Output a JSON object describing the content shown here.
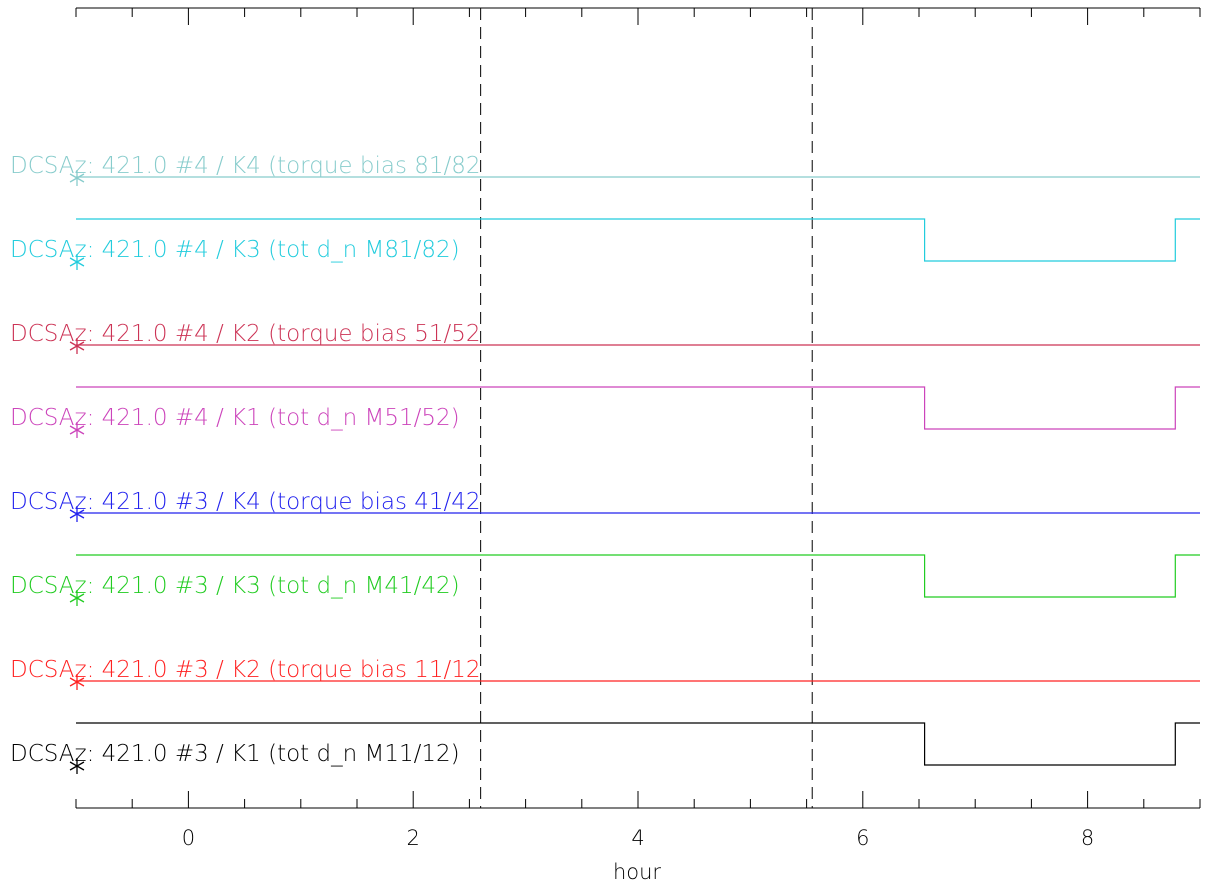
{
  "chart_data": {
    "type": "line",
    "xlabel": "hour",
    "ylabel": "",
    "xlim": [
      -1.0,
      9.0
    ],
    "x_ticks": [
      0,
      2,
      4,
      6,
      8
    ],
    "x_tick_labels": [
      "0",
      "2",
      "4",
      "6",
      "8"
    ],
    "grid": false,
    "vertical_markers": [
      2.6,
      5.55
    ],
    "series": [
      {
        "name": "DCSAz: 421.0 #3 / K1 (tot d_n M11/12)",
        "color": "#000000",
        "kind": "step",
        "x": [
          -1.0,
          6.55,
          6.55,
          8.78,
          8.78,
          9.0
        ],
        "y": [
          1,
          1,
          0,
          0,
          1,
          1
        ]
      },
      {
        "name": "DCSAz: 421.0 #3 / K2 (torque bias 11/12",
        "color": "#ff2222",
        "kind": "flat",
        "x": [
          -1.0,
          9.0
        ],
        "y": [
          0,
          0
        ]
      },
      {
        "name": "DCSAz: 421.0 #3 / K3 (tot d_n M41/42)",
        "color": "#22cc22",
        "kind": "step",
        "x": [
          -1.0,
          6.55,
          6.55,
          8.78,
          8.78,
          9.0
        ],
        "y": [
          1,
          1,
          0,
          0,
          1,
          1
        ]
      },
      {
        "name": "DCSAz: 421.0 #3 / K4 (torque bias 41/42",
        "color": "#2222ee",
        "kind": "flat",
        "x": [
          -1.0,
          9.0
        ],
        "y": [
          0,
          0
        ]
      },
      {
        "name": "DCSAz: 421.0 #4 / K1 (tot d_n M51/52)",
        "color": "#cc44bb",
        "kind": "step",
        "x": [
          -1.0,
          6.55,
          6.55,
          8.78,
          8.78,
          9.0
        ],
        "y": [
          1,
          1,
          0,
          0,
          1,
          1
        ]
      },
      {
        "name": "DCSAz: 421.0 #4 / K2 (torque bias 51/52",
        "color": "#cc3355",
        "kind": "flat",
        "x": [
          -1.0,
          9.0
        ],
        "y": [
          0,
          0
        ]
      },
      {
        "name": "DCSAz: 421.0 #4 / K3 (tot d_n M81/82)",
        "color": "#22ccdd",
        "kind": "step",
        "x": [
          -1.0,
          6.55,
          6.55,
          8.78,
          8.78,
          9.0
        ],
        "y": [
          1,
          1,
          0,
          0,
          1,
          1
        ]
      },
      {
        "name": "DCSAz: 421.0 #4 / K4 (torque bias 81/82",
        "color": "#88cccc",
        "kind": "flat",
        "x": [
          -1.0,
          9.0
        ],
        "y": [
          0,
          0
        ]
      }
    ]
  }
}
